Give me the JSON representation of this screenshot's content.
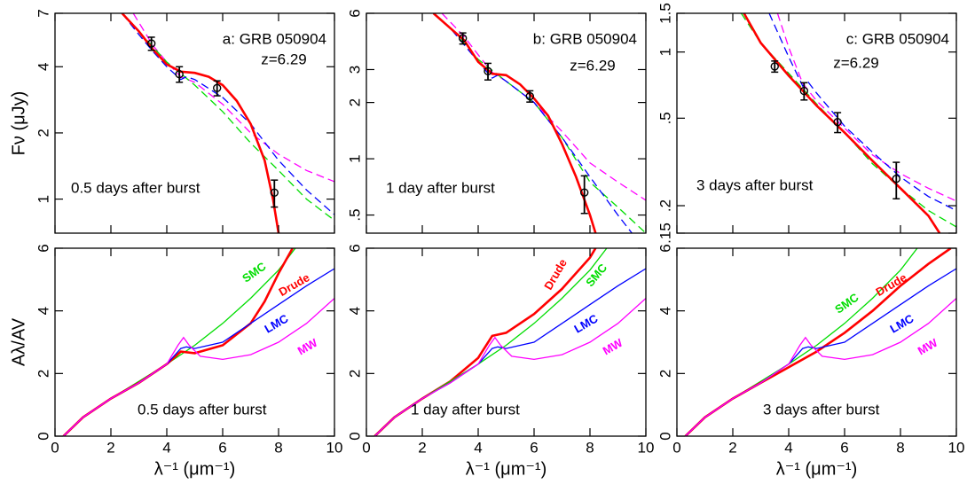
{
  "chart_data": [
    {
      "type": "line",
      "log_y": true,
      "xlim": [
        0,
        10
      ],
      "xticks": [
        0,
        2,
        4,
        6,
        8,
        10
      ],
      "xtick_labels": false,
      "ylim": [
        0.7,
        7
      ],
      "yticks": [
        1,
        2,
        4,
        7
      ],
      "ylabel": "Fν (μJy)",
      "annotations": [
        "a: GRB 050904",
        "z=6.29",
        "0.5 days after burst"
      ],
      "series": [
        {
          "style": "dashed",
          "color": "#ff00ff",
          "x": [
            2.8,
            3.5,
            4,
            4.5,
            5,
            6,
            7,
            8,
            9,
            10
          ],
          "values": [
            7,
            5.0,
            4.2,
            3.6,
            3.4,
            2.7,
            2.0,
            1.6,
            1.35,
            1.2
          ]
        },
        {
          "style": "dashed",
          "color": "#00dd00",
          "x": [
            2.4,
            3,
            4,
            5,
            6,
            7,
            8,
            9,
            10
          ],
          "values": [
            7,
            5.8,
            4.2,
            3.3,
            2.5,
            1.8,
            1.35,
            1.0,
            0.8
          ]
        },
        {
          "style": "dashed",
          "color": "#0000ff",
          "x": [
            2.4,
            3,
            3.5,
            4,
            4.5,
            4.7,
            5,
            6,
            7,
            8,
            9,
            10
          ],
          "values": [
            7,
            5.6,
            4.7,
            4.0,
            3.5,
            3.6,
            3.5,
            2.9,
            2.2,
            1.5,
            1.1,
            0.85
          ]
        },
        {
          "style": "solid",
          "color": "#ff0000",
          "x": [
            2.4,
            3,
            3.5,
            4,
            4.5,
            5,
            5.5,
            6,
            6.5,
            7,
            7.5,
            7.8,
            8
          ],
          "values": [
            7,
            5.8,
            4.8,
            4.1,
            3.8,
            3.75,
            3.6,
            3.3,
            2.8,
            2.2,
            1.5,
            1.0,
            0.7
          ]
        },
        {
          "style": "points",
          "color": "#000000",
          "x": [
            3.45,
            4.45,
            5.8,
            7.85
          ],
          "values": [
            5.1,
            3.7,
            3.2,
            1.07
          ],
          "errors": [
            0.35,
            0.3,
            0.25,
            0.15
          ]
        }
      ]
    },
    {
      "type": "line",
      "log_y": true,
      "xlim": [
        0,
        10
      ],
      "xticks": [
        0,
        2,
        4,
        6,
        8,
        10
      ],
      "xtick_labels": false,
      "ylim": [
        0.4,
        6
      ],
      "yticks": [
        {
          "value": 0.5,
          "label": ".5"
        },
        1,
        2,
        3,
        6
      ],
      "annotations": [
        "b: GRB 050904",
        "z=6.29",
        "1 day after burst"
      ],
      "series": [
        {
          "style": "dashed",
          "color": "#ff00ff",
          "x": [
            2.7,
            3.5,
            4,
            4.5,
            5,
            6,
            7,
            8,
            9,
            10
          ],
          "values": [
            6,
            4.5,
            3.6,
            2.9,
            2.6,
            2.0,
            1.4,
            0.95,
            0.75,
            0.6
          ]
        },
        {
          "style": "dashed",
          "color": "#00dd00",
          "x": [
            2.4,
            3,
            4,
            5,
            6,
            7,
            8,
            9,
            10
          ],
          "values": [
            6,
            5,
            3.4,
            2.6,
            2.0,
            1.3,
            0.75,
            0.55,
            0.4
          ]
        },
        {
          "style": "dashed",
          "color": "#0000ff",
          "x": [
            2.4,
            3,
            4,
            4.5,
            4.7,
            5,
            6,
            7,
            8,
            9,
            9.5
          ],
          "values": [
            6,
            5,
            3.3,
            2.7,
            2.8,
            2.6,
            2.0,
            1.3,
            0.8,
            0.5,
            0.4
          ]
        },
        {
          "style": "solid",
          "color": "#ff0000",
          "x": [
            2.4,
            3,
            3.5,
            4,
            4.5,
            5,
            5.5,
            6,
            6.5,
            7,
            7.5,
            8,
            8.2
          ],
          "values": [
            6,
            5,
            4.3,
            3.3,
            2.85,
            2.8,
            2.5,
            2.1,
            1.7,
            1.2,
            0.8,
            0.5,
            0.4
          ]
        },
        {
          "style": "points",
          "color": "#000000",
          "x": [
            3.45,
            4.35,
            5.85,
            7.8
          ],
          "values": [
            4.41,
            2.94,
            2.16,
            0.66
          ],
          "errors": [
            0.3,
            0.3,
            0.15,
            0.15
          ]
        }
      ]
    },
    {
      "type": "line",
      "log_y": true,
      "xlim": [
        0,
        10
      ],
      "xticks": [
        0,
        2,
        4,
        6,
        8,
        10
      ],
      "xtick_labels": false,
      "ylim": [
        0.15,
        1.5
      ],
      "yticks": [
        {
          "value": 0.15,
          "label": ".15"
        },
        {
          "value": 0.2,
          "label": ".2"
        },
        {
          "value": 0.5,
          "label": ".5"
        },
        1,
        1.5
      ],
      "annotations": [
        "c: GRB 050904",
        "z=6.29",
        "3 days after burst"
      ],
      "series": [
        {
          "style": "dashed",
          "color": "#ff00ff",
          "x": [
            3.6,
            4,
            4.5,
            5,
            6,
            7,
            8,
            9,
            10
          ],
          "values": [
            1.5,
            1.05,
            0.72,
            0.6,
            0.45,
            0.34,
            0.28,
            0.24,
            0.21
          ]
        },
        {
          "style": "dashed",
          "color": "#00dd00",
          "x": [
            2.3,
            3,
            4,
            5,
            6,
            7,
            8,
            9,
            10
          ],
          "values": [
            1.5,
            1.1,
            0.8,
            0.58,
            0.43,
            0.31,
            0.24,
            0.19,
            0.16
          ]
        },
        {
          "style": "dashed",
          "color": "#0000ff",
          "x": [
            3.3,
            4,
            4.5,
            4.7,
            5,
            6,
            7,
            8,
            9,
            10
          ],
          "values": [
            1.5,
            0.95,
            0.7,
            0.73,
            0.65,
            0.46,
            0.35,
            0.27,
            0.22,
            0.19
          ]
        },
        {
          "style": "solid",
          "color": "#ff0000",
          "x": [
            2.4,
            3,
            4,
            5,
            6,
            7,
            8,
            9,
            9.4
          ],
          "values": [
            1.5,
            1.1,
            0.78,
            0.57,
            0.43,
            0.32,
            0.24,
            0.18,
            0.15
          ]
        },
        {
          "style": "points",
          "color": "#000000",
          "x": [
            3.5,
            4.55,
            5.75,
            7.85
          ],
          "values": [
            0.86,
            0.665,
            0.48,
            0.265
          ],
          "errors": [
            0.05,
            0.06,
            0.05,
            0.05
          ]
        }
      ]
    },
    {
      "type": "line",
      "xlim": [
        0,
        10
      ],
      "xticks": [
        0,
        2,
        4,
        6,
        8,
        10
      ],
      "ylim": [
        0,
        6
      ],
      "yticks": [
        0,
        2,
        4,
        6
      ],
      "ylabel": "Aλ/AV",
      "xlabel": "λ⁻¹ (μm⁻¹)",
      "annotations": [
        "0.5 days after burst"
      ],
      "series": [
        {
          "name": "SMC",
          "style": "thin",
          "color": "#00dd00",
          "x": [
            0.3,
            1,
            2,
            3,
            4,
            5,
            6,
            7,
            8,
            8.6
          ],
          "values": [
            0,
            0.6,
            1.2,
            1.75,
            2.3,
            2.9,
            3.6,
            4.4,
            5.3,
            6
          ]
        },
        {
          "name": "Drude",
          "style": "solid",
          "color": "#ff0000",
          "x": [
            0.3,
            1,
            2,
            3,
            4,
            4.5,
            5,
            6,
            7,
            7.5,
            8,
            8.5
          ],
          "values": [
            0,
            0.6,
            1.2,
            1.7,
            2.3,
            2.7,
            2.65,
            2.9,
            3.6,
            4.3,
            5.2,
            6
          ]
        },
        {
          "name": "LMC",
          "style": "thin",
          "color": "#0000ff",
          "x": [
            0.3,
            1,
            2,
            3,
            4,
            4.5,
            4.7,
            5,
            6,
            7,
            8,
            9,
            10
          ],
          "values": [
            0,
            0.6,
            1.2,
            1.7,
            2.3,
            2.8,
            2.85,
            2.8,
            3.0,
            3.6,
            4.2,
            4.8,
            5.35
          ]
        },
        {
          "name": "MW",
          "style": "thin",
          "color": "#ff00ff",
          "x": [
            0.3,
            1,
            2,
            3,
            4,
            4.4,
            4.6,
            4.8,
            5.2,
            6,
            7,
            8,
            9,
            10
          ],
          "values": [
            0,
            0.6,
            1.2,
            1.7,
            2.3,
            2.9,
            3.15,
            2.9,
            2.55,
            2.45,
            2.6,
            3.0,
            3.6,
            4.4
          ]
        }
      ]
    },
    {
      "type": "line",
      "xlim": [
        0,
        10
      ],
      "xticks": [
        0,
        2,
        4,
        6,
        8,
        10
      ],
      "ylim": [
        0,
        6
      ],
      "yticks": [
        0,
        2,
        4,
        6
      ],
      "xlabel": "λ⁻¹ (μm⁻¹)",
      "annotations": [
        "1 day after burst"
      ],
      "series": [
        {
          "name": "Drude",
          "style": "solid",
          "color": "#ff0000",
          "x": [
            0.3,
            1,
            2,
            3,
            4,
            4.5,
            5,
            6,
            7,
            8,
            8.2
          ],
          "values": [
            0,
            0.6,
            1.2,
            1.75,
            2.5,
            3.2,
            3.3,
            3.9,
            4.7,
            5.7,
            6
          ]
        },
        {
          "name": "SMC",
          "style": "thin",
          "color": "#00dd00",
          "x": [
            0.3,
            1,
            2,
            3,
            4,
            5,
            6,
            7,
            8,
            8.6
          ],
          "values": [
            0,
            0.6,
            1.2,
            1.75,
            2.3,
            2.9,
            3.6,
            4.4,
            5.3,
            6
          ]
        },
        {
          "name": "LMC",
          "style": "thin",
          "color": "#0000ff",
          "x": [
            0.3,
            1,
            2,
            3,
            4,
            4.5,
            4.7,
            5,
            6,
            7,
            8,
            9,
            10
          ],
          "values": [
            0,
            0.6,
            1.2,
            1.7,
            2.3,
            2.8,
            2.85,
            2.8,
            3.0,
            3.6,
            4.2,
            4.8,
            5.35
          ]
        },
        {
          "name": "MW",
          "style": "thin",
          "color": "#ff00ff",
          "x": [
            0.3,
            1,
            2,
            3,
            4,
            4.4,
            4.6,
            4.8,
            5.2,
            6,
            7,
            8,
            9,
            10
          ],
          "values": [
            0,
            0.6,
            1.2,
            1.7,
            2.3,
            2.9,
            3.15,
            2.9,
            2.55,
            2.45,
            2.6,
            3.0,
            3.6,
            4.4
          ]
        }
      ]
    },
    {
      "type": "line",
      "xlim": [
        0,
        10
      ],
      "xticks": [
        0,
        2,
        4,
        6,
        8,
        10
      ],
      "ylim": [
        0,
        6
      ],
      "yticks": [
        0,
        2,
        4,
        6
      ],
      "xlabel": "λ⁻¹ (μm⁻¹)",
      "annotations": [
        "3 days after burst"
      ],
      "series": [
        {
          "name": "SMC",
          "style": "thin",
          "color": "#00dd00",
          "x": [
            0.3,
            1,
            2,
            3,
            4,
            5,
            6,
            7,
            8,
            8.6
          ],
          "values": [
            0,
            0.6,
            1.2,
            1.75,
            2.3,
            2.9,
            3.6,
            4.4,
            5.3,
            6
          ]
        },
        {
          "name": "Drude",
          "style": "solid",
          "color": "#ff0000",
          "x": [
            0.3,
            1,
            2,
            3,
            4,
            5,
            6,
            7,
            8,
            9,
            9.8
          ],
          "values": [
            0,
            0.6,
            1.2,
            1.7,
            2.2,
            2.7,
            3.3,
            4.0,
            4.8,
            5.5,
            6
          ]
        },
        {
          "name": "LMC",
          "style": "thin",
          "color": "#0000ff",
          "x": [
            0.3,
            1,
            2,
            3,
            4,
            4.5,
            4.7,
            5,
            6,
            7,
            8,
            9,
            10
          ],
          "values": [
            0,
            0.6,
            1.2,
            1.7,
            2.3,
            2.8,
            2.85,
            2.8,
            3.0,
            3.6,
            4.2,
            4.8,
            5.35
          ]
        },
        {
          "name": "MW",
          "style": "thin",
          "color": "#ff00ff",
          "x": [
            0.3,
            1,
            2,
            3,
            4,
            4.4,
            4.6,
            4.8,
            5.2,
            6,
            7,
            8,
            9,
            10
          ],
          "values": [
            0,
            0.6,
            1.2,
            1.7,
            2.3,
            2.9,
            3.15,
            2.9,
            2.55,
            2.45,
            2.6,
            3.0,
            3.6,
            4.4
          ]
        }
      ]
    }
  ]
}
